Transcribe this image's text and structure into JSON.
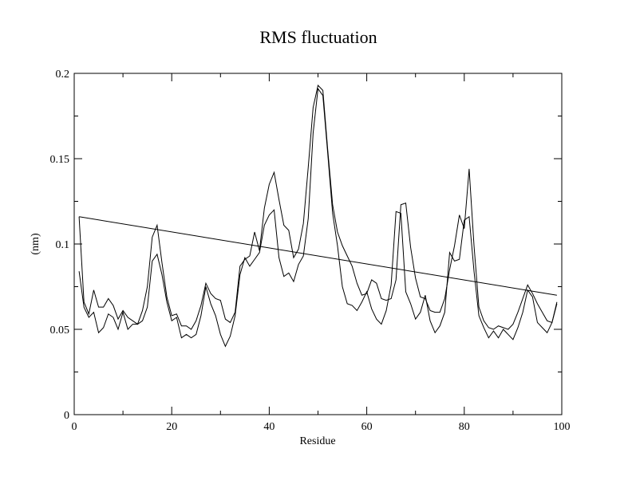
{
  "chart_data": {
    "type": "line",
    "title": "RMS fluctuation",
    "xlabel": "Residue",
    "ylabel": "(nm)",
    "xlim": [
      0,
      100
    ],
    "ylim": [
      0,
      0.2
    ],
    "xticks": [
      0,
      20,
      40,
      60,
      80,
      100
    ],
    "yticks": [
      0,
      0.05,
      0.1,
      0.15,
      0.2
    ],
    "xtick_labels": [
      "0",
      "20",
      "40",
      "60",
      "80",
      "100"
    ],
    "ytick_labels": [
      "0",
      "0.05",
      "0.1",
      "0.15",
      "0.2"
    ],
    "x_minor_step": 10,
    "y_minor_step": 0.025,
    "series": [
      {
        "x": [
          1,
          2,
          3,
          4,
          5,
          6,
          7,
          8,
          9,
          10,
          11,
          12,
          13,
          14,
          15,
          16,
          17,
          18,
          19,
          20,
          21,
          22,
          23,
          24,
          25,
          26,
          27,
          28,
          29,
          30,
          31,
          32,
          33,
          34,
          35,
          36,
          37,
          38,
          39,
          40,
          41,
          42,
          43,
          44,
          45,
          46,
          47,
          48,
          49,
          50,
          51,
          52,
          53,
          54,
          55,
          56,
          57,
          58,
          59,
          60,
          61,
          62,
          63,
          64,
          65,
          66,
          67,
          68,
          69,
          70,
          71,
          72,
          73,
          74,
          75,
          76,
          77,
          78,
          79,
          80,
          81,
          82,
          83,
          84,
          85,
          86,
          87,
          88,
          89,
          90,
          91,
          92,
          93,
          94,
          95,
          96,
          97,
          98,
          99
        ],
        "values": [
          0.116,
          0.066,
          0.059,
          0.073,
          0.063,
          0.063,
          0.068,
          0.064,
          0.056,
          0.061,
          0.057,
          0.055,
          0.053,
          0.061,
          0.075,
          0.104,
          0.111,
          0.089,
          0.069,
          0.058,
          0.059,
          0.052,
          0.052,
          0.05,
          0.055,
          0.064,
          0.077,
          0.071,
          0.068,
          0.067,
          0.056,
          0.054,
          0.06,
          0.087,
          0.091,
          0.093,
          0.107,
          0.096,
          0.121,
          0.135,
          0.142,
          0.126,
          0.111,
          0.108,
          0.092,
          0.097,
          0.112,
          0.145,
          0.18,
          0.193,
          0.19,
          0.155,
          0.123,
          0.107,
          0.099,
          0.093,
          0.087,
          0.077,
          0.07,
          0.071,
          0.079,
          0.077,
          0.068,
          0.067,
          0.068,
          0.079,
          0.123,
          0.124,
          0.098,
          0.08,
          0.069,
          0.068,
          0.061,
          0.06,
          0.06,
          0.068,
          0.085,
          0.099,
          0.117,
          0.109,
          0.144,
          0.099,
          0.063,
          0.055,
          0.051,
          0.05,
          0.052,
          0.051,
          0.05,
          0.053,
          0.06,
          0.068,
          0.076,
          0.071,
          0.065,
          0.06,
          0.055,
          0.054,
          0.066
        ]
      },
      {
        "x": [
          1,
          2,
          3,
          4,
          5,
          6,
          7,
          8,
          9,
          10,
          11,
          12,
          13,
          14,
          15,
          16,
          17,
          18,
          19,
          20,
          21,
          22,
          23,
          24,
          25,
          26,
          27,
          28,
          29,
          30,
          31,
          32,
          33,
          34,
          35,
          36,
          37,
          38,
          39,
          40,
          41,
          42,
          43,
          44,
          45,
          46,
          47,
          48,
          49,
          50,
          51,
          52,
          53,
          54,
          55,
          56,
          57,
          58,
          59,
          60,
          61,
          62,
          63,
          64,
          65,
          66,
          67,
          68,
          69,
          70,
          71,
          72,
          73,
          74,
          75,
          76,
          77,
          78,
          79,
          80,
          81,
          82,
          83,
          84,
          85,
          86,
          87,
          88,
          89,
          90,
          91,
          92,
          93,
          94,
          95,
          96,
          97,
          98,
          99
        ],
        "values": [
          0.084,
          0.063,
          0.057,
          0.06,
          0.048,
          0.051,
          0.059,
          0.057,
          0.05,
          0.06,
          0.05,
          0.053,
          0.053,
          0.055,
          0.063,
          0.09,
          0.094,
          0.082,
          0.066,
          0.055,
          0.057,
          0.045,
          0.047,
          0.045,
          0.047,
          0.058,
          0.075,
          0.065,
          0.058,
          0.047,
          0.04,
          0.046,
          0.058,
          0.082,
          0.092,
          0.087,
          0.091,
          0.095,
          0.111,
          0.117,
          0.12,
          0.092,
          0.081,
          0.083,
          0.078,
          0.088,
          0.093,
          0.115,
          0.165,
          0.191,
          0.187,
          0.153,
          0.118,
          0.099,
          0.075,
          0.065,
          0.064,
          0.061,
          0.066,
          0.072,
          0.062,
          0.056,
          0.053,
          0.061,
          0.076,
          0.119,
          0.118,
          0.072,
          0.065,
          0.056,
          0.06,
          0.07,
          0.055,
          0.048,
          0.052,
          0.06,
          0.095,
          0.09,
          0.091,
          0.114,
          0.116,
          0.084,
          0.058,
          0.051,
          0.045,
          0.049,
          0.045,
          0.05,
          0.047,
          0.044,
          0.051,
          0.06,
          0.073,
          0.069,
          0.054,
          0.051,
          0.048,
          0.054,
          0.065
        ]
      },
      {
        "x": [
          1,
          99
        ],
        "values": [
          0.116,
          0.07
        ]
      }
    ]
  }
}
